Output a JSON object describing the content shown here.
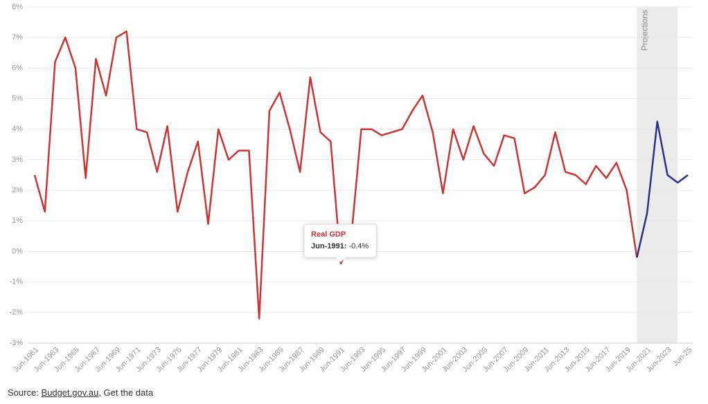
{
  "chart_data": {
    "type": "line",
    "categories": [
      "Jun-1961",
      null,
      "Jun-1963",
      null,
      "Jun-1965",
      null,
      "Jun-1967",
      null,
      "Jun-1969",
      null,
      "Jun-1971",
      null,
      "Jun-1973",
      null,
      "Jun-1975",
      null,
      "Jun-1977",
      null,
      "Jun-1979",
      null,
      "Jun-1981",
      null,
      "Jun-1983",
      null,
      "Jun-1985",
      null,
      "Jun-1987",
      null,
      "Jun-1989",
      null,
      "Jun-1991",
      null,
      "Jun-1993",
      null,
      "Jun-1995",
      null,
      "Jun-1997",
      null,
      "Jun-1999",
      null,
      "Jun-2001",
      null,
      "Jun-2003",
      null,
      "Jun-2005",
      null,
      "Jun-2007",
      null,
      "Jun-2009",
      null,
      "Jun-2011",
      null,
      "Jun-2013",
      null,
      "Jun-2015",
      null,
      "Jun-2017",
      null,
      "Jun-2019",
      null,
      "Jun-2021",
      null,
      "Jun-2023",
      null,
      "Jun-25"
    ],
    "series": [
      {
        "name": "Real GDP",
        "color": "#cc3333",
        "values": [
          2.5,
          1.3,
          6.2,
          7.0,
          6.0,
          2.4,
          6.3,
          5.1,
          7.0,
          7.2,
          4.0,
          3.9,
          2.6,
          4.1,
          1.3,
          2.6,
          3.6,
          0.9,
          4.0,
          3.0,
          3.3,
          3.3,
          -2.2,
          4.6,
          5.2,
          4.0,
          2.6,
          5.7,
          3.9,
          3.6,
          -0.4,
          0.4,
          4.0,
          4.0,
          3.8,
          3.9,
          4.0,
          4.6,
          5.1,
          3.9,
          1.9,
          4.0,
          3.0,
          4.1,
          3.2,
          2.8,
          3.8,
          3.7,
          1.9,
          2.1,
          2.5,
          3.9,
          2.6,
          2.5,
          2.2,
          2.8,
          2.4,
          2.9,
          2.0,
          -0.2,
          null,
          null,
          null,
          null,
          null
        ]
      },
      {
        "color": "#2e2e8a",
        "values": [
          null,
          null,
          null,
          null,
          null,
          null,
          null,
          null,
          null,
          null,
          null,
          null,
          null,
          null,
          null,
          null,
          null,
          null,
          null,
          null,
          null,
          null,
          null,
          null,
          null,
          null,
          null,
          null,
          null,
          null,
          null,
          null,
          null,
          null,
          null,
          null,
          null,
          null,
          null,
          null,
          null,
          null,
          null,
          null,
          null,
          null,
          null,
          null,
          null,
          null,
          null,
          null,
          null,
          null,
          null,
          null,
          null,
          null,
          null,
          -0.2,
          1.25,
          4.25,
          2.5,
          2.25,
          2.5
        ]
      }
    ],
    "ylim": [
      -3,
      8
    ],
    "yticks": [
      {
        "value": -3,
        "label": "-3%"
      },
      {
        "value": -2,
        "label": "-2%"
      },
      {
        "value": -1,
        "label": "-1%"
      },
      {
        "value": 0,
        "label": "0%"
      },
      {
        "value": 1,
        "label": "1%"
      },
      {
        "value": 2,
        "label": "2%"
      },
      {
        "value": 3,
        "label": "3%"
      },
      {
        "value": 4,
        "label": "4%"
      },
      {
        "value": 5,
        "label": "5%"
      },
      {
        "value": 6,
        "label": "6%"
      },
      {
        "value": 7,
        "label": "7%"
      },
      {
        "value": 8,
        "label": "8%"
      }
    ],
    "grid": true,
    "projections_label": "Projections",
    "tooltip": {
      "category": "Jun-1991",
      "value_label": "-0.4%"
    },
    "source": {
      "prefix": "Source:",
      "link": "Budget.gov.au",
      "suffix": ", Get the data"
    }
  }
}
